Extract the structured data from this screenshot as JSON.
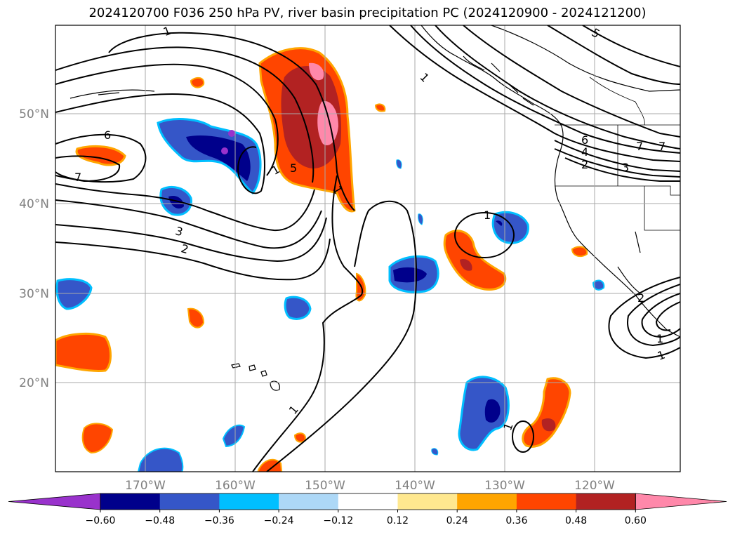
{
  "title": "2024120700 F036 250 hPa PV, river basin precipitation PC (2024120900 - 2024121200)",
  "map": {
    "lon_labels": [
      "170°W",
      "160°W",
      "150°W",
      "140°W",
      "130°W",
      "120°W"
    ],
    "lat_labels": [
      "50°N",
      "40°N",
      "30°N",
      "20°N"
    ],
    "gridlines": true
  },
  "pv_contour_labels": [
    "1",
    "1",
    "1",
    "1",
    "1",
    "1",
    "1",
    "2",
    "2",
    "3",
    "3",
    "4",
    "5",
    "5",
    "6",
    "6",
    "7",
    "7",
    "7",
    "1",
    "2",
    "1"
  ],
  "colorbar": {
    "ticks": [
      "−0.60",
      "−0.48",
      "−0.36",
      "−0.24",
      "−0.12",
      "0.12",
      "0.24",
      "0.36",
      "0.48",
      "0.60"
    ],
    "colors": [
      "#9932cc",
      "#00008b",
      "#3556c8",
      "#00bfff",
      "#add8f7",
      "#ffffff",
      "#ffe88f",
      "#ffa500",
      "#ff4500",
      "#b22222",
      "#ff88aa"
    ]
  }
}
